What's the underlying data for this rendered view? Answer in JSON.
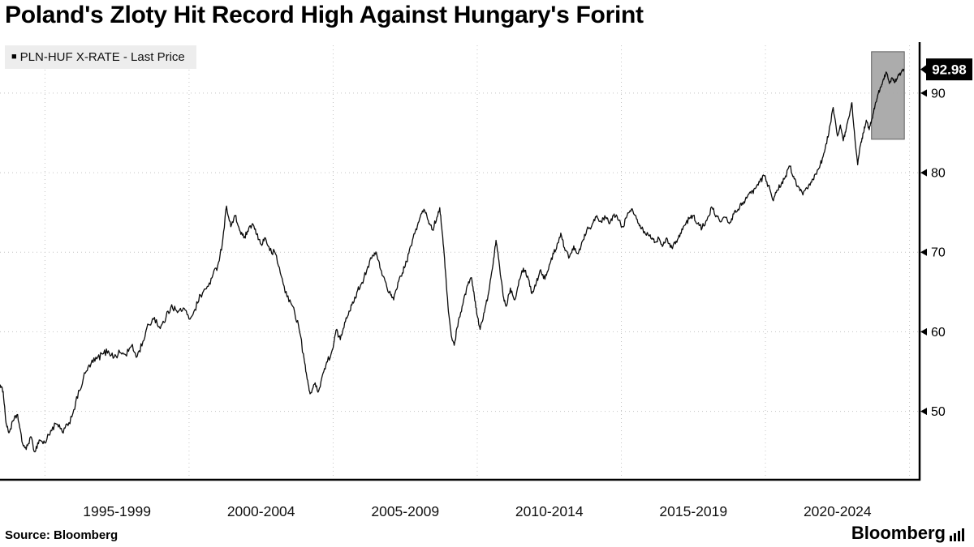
{
  "title": "Poland's Zloty Hit Record High Against Hungary's Forint",
  "legend": {
    "marker": "■",
    "label": "PLN-HUF X-RATE - Last Price"
  },
  "source": "Source: Bloomberg",
  "branding": "Bloomberg",
  "colors": {
    "line": "#0b0b0b",
    "grid": "#c4c4c4",
    "axis": "#000000",
    "highlight_fill": "#a8a8a8",
    "highlight_stroke": "#585858",
    "label_bg": "#000000",
    "label_fg": "#ffffff",
    "legend_bg": "#ededed"
  },
  "chart_data": {
    "type": "line",
    "title": "Poland's Zloty Hit Record High Against Hungary's Forint",
    "xlabel": "",
    "ylabel": "",
    "grid": "dotted",
    "legend_position": "top-left",
    "xlim": [
      1993.44,
      2025.35
    ],
    "ylim": [
      41.4,
      96.0
    ],
    "y_ticks": [
      50,
      60,
      70,
      80,
      90
    ],
    "x_gridline_years": [
      1995,
      2000,
      2005,
      2010,
      2015,
      2020,
      2025
    ],
    "x_tick_labels": [
      {
        "label": "1995-1999",
        "center_year": 1997.5
      },
      {
        "label": "2000-2004",
        "center_year": 2002.5
      },
      {
        "label": "2005-2009",
        "center_year": 2007.5
      },
      {
        "label": "2010-2014",
        "center_year": 2012.5
      },
      {
        "label": "2015-2019",
        "center_year": 2017.5
      },
      {
        "label": "2020-2024",
        "center_year": 2022.5
      }
    ],
    "last_price_label": "92.98",
    "last_price_value": 92.98,
    "highlight_region": {
      "x0": 2023.68,
      "x1": 2024.82,
      "y0": 84.2,
      "y1": 95.2
    },
    "series": [
      {
        "name": "PLN-HUF X-RATE - Last Price",
        "points": [
          [
            1993.45,
            53.3
          ],
          [
            1993.55,
            52.5
          ],
          [
            1993.65,
            48.5
          ],
          [
            1993.75,
            47.3
          ],
          [
            1993.9,
            48.8
          ],
          [
            1994.05,
            49.6
          ],
          [
            1994.2,
            46.2
          ],
          [
            1994.35,
            45.2
          ],
          [
            1994.5,
            46.8
          ],
          [
            1994.65,
            44.9
          ],
          [
            1994.8,
            46.4
          ],
          [
            1995.0,
            46.0
          ],
          [
            1995.2,
            47.6
          ],
          [
            1995.4,
            48.4
          ],
          [
            1995.6,
            47.4
          ],
          [
            1995.8,
            48.2
          ],
          [
            1996.0,
            50.2
          ],
          [
            1996.2,
            52.6
          ],
          [
            1996.4,
            54.8
          ],
          [
            1996.6,
            56.0
          ],
          [
            1996.8,
            56.6
          ],
          [
            1997.0,
            57.2
          ],
          [
            1997.2,
            57.6
          ],
          [
            1997.4,
            56.8
          ],
          [
            1997.6,
            57.4
          ],
          [
            1997.8,
            57.1
          ],
          [
            1998.0,
            58.2
          ],
          [
            1998.2,
            56.9
          ],
          [
            1998.4,
            58.8
          ],
          [
            1998.6,
            60.9
          ],
          [
            1998.8,
            61.8
          ],
          [
            1999.0,
            60.4
          ],
          [
            1999.2,
            61.8
          ],
          [
            1999.4,
            63.4
          ],
          [
            1999.6,
            62.4
          ],
          [
            1999.8,
            63.0
          ],
          [
            2000.0,
            61.6
          ],
          [
            2000.2,
            62.8
          ],
          [
            2000.4,
            64.6
          ],
          [
            2000.6,
            65.4
          ],
          [
            2000.8,
            66.8
          ],
          [
            2001.0,
            68.4
          ],
          [
            2001.15,
            71.0
          ],
          [
            2001.3,
            75.8
          ],
          [
            2001.45,
            73.2
          ],
          [
            2001.6,
            74.6
          ],
          [
            2001.75,
            72.8
          ],
          [
            2001.9,
            71.8
          ],
          [
            2002.05,
            72.6
          ],
          [
            2002.2,
            73.6
          ],
          [
            2002.35,
            72.2
          ],
          [
            2002.5,
            71.0
          ],
          [
            2002.65,
            71.8
          ],
          [
            2002.8,
            70.2
          ],
          [
            2003.0,
            69.8
          ],
          [
            2003.2,
            67.0
          ],
          [
            2003.4,
            64.4
          ],
          [
            2003.6,
            63.2
          ],
          [
            2003.8,
            60.8
          ],
          [
            2004.0,
            56.4
          ],
          [
            2004.1,
            54.0
          ],
          [
            2004.2,
            52.2
          ],
          [
            2004.35,
            53.4
          ],
          [
            2004.5,
            52.6
          ],
          [
            2004.65,
            54.8
          ],
          [
            2004.8,
            56.2
          ],
          [
            2005.0,
            58.0
          ],
          [
            2005.1,
            60.2
          ],
          [
            2005.25,
            59.0
          ],
          [
            2005.4,
            61.2
          ],
          [
            2005.55,
            62.6
          ],
          [
            2005.7,
            63.6
          ],
          [
            2005.85,
            65.2
          ],
          [
            2006.0,
            66.2
          ],
          [
            2006.2,
            68.2
          ],
          [
            2006.4,
            69.6
          ],
          [
            2006.5,
            69.9
          ],
          [
            2006.65,
            67.8
          ],
          [
            2006.8,
            66.4
          ],
          [
            2007.0,
            64.6
          ],
          [
            2007.1,
            64.0
          ],
          [
            2007.25,
            66.2
          ],
          [
            2007.4,
            67.4
          ],
          [
            2007.55,
            68.8
          ],
          [
            2007.7,
            70.8
          ],
          [
            2007.85,
            72.6
          ],
          [
            2008.0,
            74.2
          ],
          [
            2008.15,
            75.4
          ],
          [
            2008.3,
            74.0
          ],
          [
            2008.45,
            72.8
          ],
          [
            2008.6,
            74.4
          ],
          [
            2008.7,
            75.6
          ],
          [
            2008.8,
            72.0
          ],
          [
            2008.9,
            67.5
          ],
          [
            2009.0,
            62.5
          ],
          [
            2009.1,
            59.5
          ],
          [
            2009.2,
            58.3
          ],
          [
            2009.35,
            61.5
          ],
          [
            2009.5,
            63.4
          ],
          [
            2009.65,
            65.8
          ],
          [
            2009.8,
            66.8
          ],
          [
            2009.9,
            64.5
          ],
          [
            2010.0,
            62.0
          ],
          [
            2010.1,
            60.3
          ],
          [
            2010.25,
            62.5
          ],
          [
            2010.4,
            65.0
          ],
          [
            2010.55,
            68.5
          ],
          [
            2010.65,
            71.5
          ],
          [
            2010.75,
            69.0
          ],
          [
            2010.9,
            64.5
          ],
          [
            2011.0,
            63.2
          ],
          [
            2011.15,
            65.5
          ],
          [
            2011.3,
            64.0
          ],
          [
            2011.45,
            66.5
          ],
          [
            2011.6,
            68.0
          ],
          [
            2011.75,
            67.0
          ],
          [
            2011.9,
            64.8
          ],
          [
            2012.05,
            66.2
          ],
          [
            2012.2,
            67.8
          ],
          [
            2012.35,
            66.6
          ],
          [
            2012.5,
            68.4
          ],
          [
            2012.65,
            69.8
          ],
          [
            2012.8,
            71.2
          ],
          [
            2012.9,
            72.4
          ],
          [
            2013.05,
            70.2
          ],
          [
            2013.2,
            69.4
          ],
          [
            2013.35,
            70.8
          ],
          [
            2013.5,
            69.8
          ],
          [
            2013.65,
            71.4
          ],
          [
            2013.8,
            72.8
          ],
          [
            2014.0,
            73.6
          ],
          [
            2014.15,
            74.6
          ],
          [
            2014.3,
            73.8
          ],
          [
            2014.45,
            74.4
          ],
          [
            2014.6,
            73.6
          ],
          [
            2014.75,
            74.8
          ],
          [
            2014.9,
            74.0
          ],
          [
            2015.05,
            73.2
          ],
          [
            2015.2,
            74.6
          ],
          [
            2015.35,
            75.4
          ],
          [
            2015.5,
            74.6
          ],
          [
            2015.65,
            73.4
          ],
          [
            2015.8,
            72.6
          ],
          [
            2016.0,
            72.2
          ],
          [
            2016.15,
            71.2
          ],
          [
            2016.3,
            71.8
          ],
          [
            2016.45,
            70.9
          ],
          [
            2016.6,
            71.6
          ],
          [
            2016.75,
            70.6
          ],
          [
            2016.9,
            71.4
          ],
          [
            2017.05,
            72.4
          ],
          [
            2017.2,
            73.4
          ],
          [
            2017.35,
            74.2
          ],
          [
            2017.5,
            74.6
          ],
          [
            2017.65,
            73.6
          ],
          [
            2017.8,
            73.0
          ],
          [
            2018.0,
            74.4
          ],
          [
            2018.15,
            75.6
          ],
          [
            2018.3,
            74.6
          ],
          [
            2018.45,
            73.8
          ],
          [
            2018.6,
            74.4
          ],
          [
            2018.75,
            73.6
          ],
          [
            2018.9,
            74.8
          ],
          [
            2019.05,
            75.4
          ],
          [
            2019.2,
            76.2
          ],
          [
            2019.35,
            76.8
          ],
          [
            2019.5,
            77.4
          ],
          [
            2019.65,
            78.0
          ],
          [
            2019.8,
            78.8
          ],
          [
            2019.95,
            79.6
          ],
          [
            2020.1,
            78.4
          ],
          [
            2020.25,
            76.6
          ],
          [
            2020.4,
            77.8
          ],
          [
            2020.55,
            78.6
          ],
          [
            2020.7,
            79.6
          ],
          [
            2020.85,
            80.8
          ],
          [
            2021.0,
            79.2
          ],
          [
            2021.15,
            78.2
          ],
          [
            2021.3,
            77.2
          ],
          [
            2021.45,
            78.0
          ],
          [
            2021.6,
            78.8
          ],
          [
            2021.75,
            79.8
          ],
          [
            2021.9,
            81.0
          ],
          [
            2022.05,
            82.6
          ],
          [
            2022.2,
            85.0
          ],
          [
            2022.35,
            88.2
          ],
          [
            2022.5,
            84.6
          ],
          [
            2022.6,
            86.0
          ],
          [
            2022.7,
            84.0
          ],
          [
            2022.8,
            85.5
          ],
          [
            2022.9,
            87.0
          ],
          [
            2023.0,
            88.8
          ],
          [
            2023.1,
            84.5
          ],
          [
            2023.2,
            81.0
          ],
          [
            2023.3,
            83.5
          ],
          [
            2023.4,
            85.0
          ],
          [
            2023.5,
            86.6
          ],
          [
            2023.6,
            85.4
          ],
          [
            2023.7,
            86.8
          ],
          [
            2023.8,
            88.4
          ],
          [
            2023.9,
            89.8
          ],
          [
            2024.0,
            90.8
          ],
          [
            2024.1,
            91.8
          ],
          [
            2024.2,
            92.6
          ],
          [
            2024.3,
            91.2
          ],
          [
            2024.4,
            91.9
          ],
          [
            2024.5,
            91.4
          ],
          [
            2024.6,
            92.2
          ],
          [
            2024.7,
            92.5
          ],
          [
            2024.8,
            92.98
          ]
        ]
      }
    ]
  }
}
